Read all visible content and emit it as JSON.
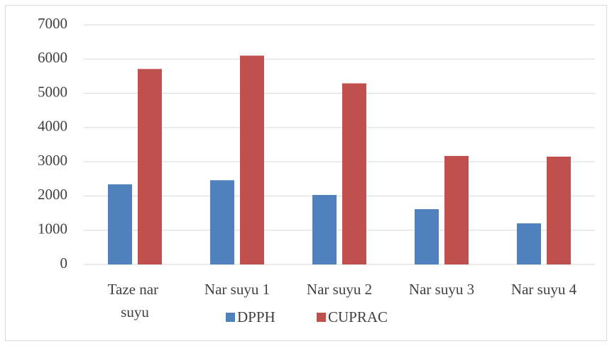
{
  "chart_data": {
    "type": "bar",
    "categories": [
      "Taze nar suyu",
      "Nar suyu 1",
      "Nar suyu 2",
      "Nar suyu 3",
      "Nar suyu 4"
    ],
    "series": [
      {
        "name": "DPPH",
        "color": "#4f81bd",
        "values": [
          2340,
          2460,
          2030,
          1615,
          1200
        ]
      },
      {
        "name": "CUPRAC",
        "color": "#c0504d",
        "values": [
          5710,
          6100,
          5290,
          3170,
          3150
        ]
      }
    ],
    "ylim": [
      0,
      7000
    ],
    "yticks": [
      0,
      1000,
      2000,
      3000,
      4000,
      5000,
      6000,
      7000
    ],
    "grid": true,
    "legend": "bottom"
  }
}
